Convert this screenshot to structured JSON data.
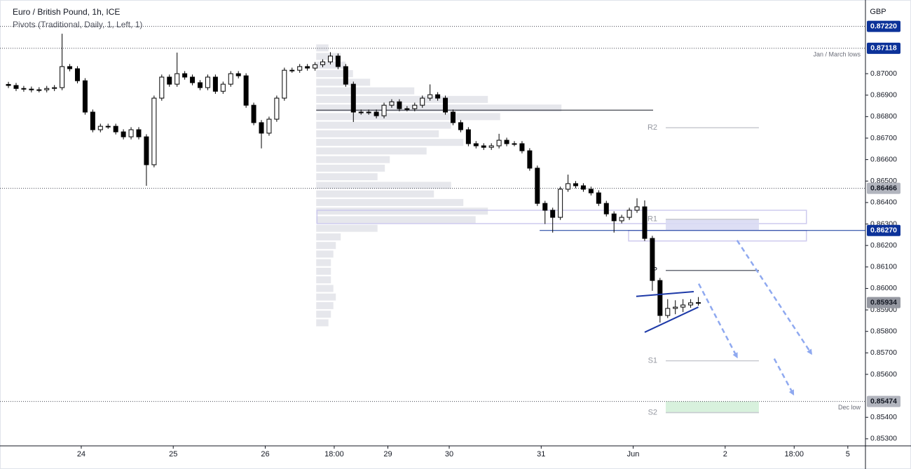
{
  "title": "Euro / British Pound, 1h, ICE",
  "indicator": "Pivots (Traditional, Daily, 1, Left, 1)",
  "chart_data": {
    "type": "candlestick",
    "currency": "GBP",
    "x": [
      0,
      2,
      4,
      6,
      8,
      10,
      12,
      14,
      16,
      18,
      20,
      22,
      24,
      26,
      28,
      30,
      32,
      34,
      36,
      38,
      40,
      42,
      44,
      46,
      48,
      50,
      52,
      54,
      56,
      58,
      60,
      62,
      64,
      66,
      68,
      70,
      72,
      74,
      76,
      78,
      80,
      82,
      84,
      86,
      88,
      90,
      92,
      94,
      96,
      98,
      100,
      102,
      104,
      106,
      108,
      110,
      112,
      114,
      116,
      118,
      120,
      122,
      124,
      126,
      128,
      130,
      132,
      134,
      136,
      138,
      140,
      142,
      144,
      146,
      148,
      150,
      152,
      154,
      156,
      158,
      160,
      162,
      164,
      166,
      168,
      170,
      172,
      174,
      176,
      178,
      180
    ],
    "open": [
      0.8695,
      0.86945,
      0.86931,
      0.86928,
      0.86925,
      0.86925,
      0.86931,
      0.86935,
      0.87033,
      0.87023,
      0.86967,
      0.86821,
      0.86739,
      0.86755,
      0.86755,
      0.86729,
      0.86706,
      0.86739,
      0.86706,
      0.86576,
      0.86886,
      0.86984,
      0.86951,
      0.87,
      0.86984,
      0.86958,
      0.86935,
      0.86984,
      0.86918,
      0.86951,
      0.87,
      0.8699,
      0.86853,
      0.86772,
      0.86723,
      0.86788,
      0.86886,
      0.87016,
      0.87016,
      0.87033,
      0.87026,
      0.87042,
      0.87055,
      0.87082,
      0.87033,
      0.86951,
      0.86821,
      0.86821,
      0.86821,
      0.86804,
      0.86853,
      0.86869,
      0.86837,
      0.86837,
      0.86853,
      0.86886,
      0.86902,
      0.86886,
      0.86821,
      0.86772,
      0.86739,
      0.86674,
      0.86664,
      0.86657,
      0.86664,
      0.8669,
      0.86674,
      0.86674,
      0.86641,
      0.8656,
      0.86396,
      0.86364,
      0.86331,
      0.86462,
      0.86488,
      0.86478,
      0.86462,
      0.86445,
      0.86396,
      0.86347,
      0.86315,
      0.86331,
      0.86364,
      0.8638,
      0.86233,
      0.86037,
      0.85874,
      0.85907,
      0.85913,
      0.85923,
      0.85933
    ],
    "high": [
      0.86962,
      0.86957,
      0.86943,
      0.8694,
      0.86937,
      0.86943,
      0.86947,
      0.87186,
      0.87045,
      0.87035,
      0.86979,
      0.86833,
      0.86767,
      0.86767,
      0.86767,
      0.86741,
      0.86751,
      0.86751,
      0.86718,
      0.86898,
      0.86996,
      0.86996,
      0.87098,
      0.87012,
      0.86996,
      0.8697,
      0.86996,
      0.86996,
      0.86963,
      0.87012,
      0.87012,
      0.87002,
      0.86865,
      0.86784,
      0.868,
      0.86898,
      0.87028,
      0.87028,
      0.87045,
      0.87045,
      0.87054,
      0.87067,
      0.871,
      0.87094,
      0.87045,
      0.86963,
      0.86833,
      0.86833,
      0.86833,
      0.86865,
      0.86881,
      0.86881,
      0.86849,
      0.86865,
      0.86898,
      0.8695,
      0.86914,
      0.86898,
      0.86833,
      0.86784,
      0.86751,
      0.86686,
      0.86676,
      0.86676,
      0.8672,
      0.86702,
      0.86686,
      0.86686,
      0.86653,
      0.86572,
      0.86408,
      0.86376,
      0.86474,
      0.8653,
      0.865,
      0.8649,
      0.86474,
      0.86457,
      0.86408,
      0.86359,
      0.86343,
      0.86376,
      0.8642,
      0.8641,
      0.86245,
      0.86049,
      0.8595,
      0.85945,
      0.8595,
      0.8595,
      0.8596
    ],
    "low": [
      0.86933,
      0.86919,
      0.86916,
      0.86913,
      0.86913,
      0.86913,
      0.86919,
      0.86923,
      0.87011,
      0.86955,
      0.86809,
      0.86727,
      0.86727,
      0.86743,
      0.86717,
      0.86694,
      0.86694,
      0.86694,
      0.86478,
      0.86564,
      0.86874,
      0.86939,
      0.86939,
      0.86972,
      0.86946,
      0.86923,
      0.86923,
      0.86906,
      0.86906,
      0.86939,
      0.86978,
      0.86841,
      0.8676,
      0.86652,
      0.86711,
      0.86776,
      0.86874,
      0.87004,
      0.87004,
      0.87014,
      0.87014,
      0.8703,
      0.87043,
      0.87021,
      0.86939,
      0.86775,
      0.86809,
      0.86809,
      0.86792,
      0.86792,
      0.86841,
      0.86825,
      0.86825,
      0.86825,
      0.86841,
      0.86874,
      0.86874,
      0.86809,
      0.8676,
      0.86727,
      0.86662,
      0.86652,
      0.86645,
      0.86645,
      0.86652,
      0.86662,
      0.86662,
      0.86629,
      0.86548,
      0.86384,
      0.863,
      0.8626,
      0.86319,
      0.8645,
      0.86466,
      0.8645,
      0.86433,
      0.86384,
      0.86335,
      0.8626,
      0.86303,
      0.86319,
      0.86352,
      0.86221,
      0.85989,
      0.85841,
      0.85862,
      0.8588,
      0.8589,
      0.8591,
      0.8592
    ],
    "close": [
      0.86945,
      0.86931,
      0.86928,
      0.86925,
      0.86925,
      0.86931,
      0.86935,
      0.87033,
      0.87023,
      0.86967,
      0.86821,
      0.86739,
      0.86755,
      0.86755,
      0.86729,
      0.86706,
      0.86739,
      0.86706,
      0.86576,
      0.86886,
      0.86984,
      0.86951,
      0.87,
      0.86984,
      0.86958,
      0.86935,
      0.86984,
      0.86918,
      0.86951,
      0.87,
      0.8699,
      0.86853,
      0.86772,
      0.86723,
      0.86788,
      0.86886,
      0.87016,
      0.87016,
      0.87033,
      0.87026,
      0.87042,
      0.87055,
      0.87082,
      0.87033,
      0.86951,
      0.86821,
      0.86821,
      0.86821,
      0.86804,
      0.86853,
      0.86869,
      0.86837,
      0.86837,
      0.86853,
      0.86886,
      0.86902,
      0.86886,
      0.86821,
      0.86772,
      0.86739,
      0.86674,
      0.86664,
      0.86657,
      0.86664,
      0.8669,
      0.86674,
      0.86674,
      0.86641,
      0.8656,
      0.86396,
      0.86364,
      0.86331,
      0.86462,
      0.86488,
      0.86478,
      0.86462,
      0.86445,
      0.86396,
      0.86347,
      0.86315,
      0.86331,
      0.86364,
      0.8638,
      0.86233,
      0.86037,
      0.85874,
      0.85907,
      0.85913,
      0.85923,
      0.85933,
      0.85934
    ],
    "up_color": "#ffffff",
    "down_color": "#000000",
    "xlim": [
      -2.2,
      223.6
    ],
    "ylim": [
      0.85267,
      0.87343
    ],
    "xticks": [
      {
        "value": 19,
        "label": "24"
      },
      {
        "value": 43,
        "label": "25"
      },
      {
        "value": 67,
        "label": "26"
      },
      {
        "value": 85,
        "label": "18:00"
      },
      {
        "value": 99,
        "label": "29"
      },
      {
        "value": 115,
        "label": "30"
      },
      {
        "value": 139,
        "label": "31"
      },
      {
        "value": 163,
        "label": "Jun"
      },
      {
        "value": 187,
        "label": "2"
      },
      {
        "value": 205,
        "label": "18:00"
      },
      {
        "value": 219,
        "label": "5"
      }
    ],
    "yticks": [
      {
        "value": 0.853,
        "label": "0.85300"
      },
      {
        "value": 0.854,
        "label": "0.85400"
      },
      {
        "value": 0.856,
        "label": "0.85600"
      },
      {
        "value": 0.857,
        "label": "0.85700"
      },
      {
        "value": 0.858,
        "label": "0.85800"
      },
      {
        "value": 0.859,
        "label": "0.85900"
      },
      {
        "value": 0.86,
        "label": "0.86000"
      },
      {
        "value": 0.861,
        "label": "0.86100"
      },
      {
        "value": 0.862,
        "label": "0.86200"
      },
      {
        "value": 0.863,
        "label": "0.86300"
      },
      {
        "value": 0.864,
        "label": "0.86400"
      },
      {
        "value": 0.865,
        "label": "0.86500"
      },
      {
        "value": 0.866,
        "label": "0.86600"
      },
      {
        "value": 0.867,
        "label": "0.86700"
      },
      {
        "value": 0.868,
        "label": "0.86800"
      },
      {
        "value": 0.869,
        "label": "0.86900"
      },
      {
        "value": 0.87,
        "label": "0.87000"
      }
    ],
    "grid": false,
    "levels": [
      {
        "value": 0.8722,
        "label": "0.87220",
        "line": "dotted",
        "tag": "#0c3299",
        "from": -2.2
      },
      {
        "value": 0.87118,
        "label": "0.87118",
        "line": "dotted",
        "tag": "#0c3299",
        "from": -2.2
      },
      {
        "value": 0.86466,
        "label": "0.86466",
        "line": "dotted",
        "tag": "#b2b5be",
        "from": -2.2
      },
      {
        "value": 0.8627,
        "label": "0.86270",
        "line": "solid",
        "tag": "#0c3299",
        "from": 138.6
      },
      {
        "value": 0.85934,
        "label": "0.85934",
        "line": "none",
        "tag": "#9598a1",
        "from": -2.2
      },
      {
        "value": 0.85474,
        "label": "0.85474",
        "line": "dotted",
        "tag": "#b2b5be",
        "from": -2.2
      }
    ],
    "notes": [
      {
        "text": "Jan / March lows",
        "value": 0.87118
      },
      {
        "text": "Dec low",
        "value": 0.85474
      }
    ],
    "pivots": {
      "x": [
        171.5,
        195.8
      ],
      "levels": [
        {
          "label": "R2",
          "value": 0.86748,
          "color": "#c8cad0"
        },
        {
          "label": "R1",
          "value": 0.86322,
          "color": "#c8cad0"
        },
        {
          "label": "P",
          "value": 0.86084,
          "color": "#6a6d78"
        },
        {
          "label": "S1",
          "value": 0.85663,
          "color": "#c8cad0"
        },
        {
          "label": "S2",
          "value": 0.85422,
          "color": "#c8cad0"
        }
      ]
    },
    "zones": [
      {
        "x": [
          80.5,
          208.2
        ],
        "y": [
          0.86302,
          0.86364
        ],
        "stroke": "#c9c4ec",
        "fill": "none"
      },
      {
        "x": [
          161.8,
          208.2
        ],
        "y": [
          0.86221,
          0.8627
        ],
        "stroke": "#c9c4ec",
        "fill": "none"
      },
      {
        "x": [
          171.5,
          195.8
        ],
        "y": [
          0.8627,
          0.86322
        ],
        "stroke": "none",
        "fill": "#d9daf3"
      },
      {
        "x": [
          171.5,
          195.8
        ],
        "y": [
          0.85419,
          0.85474
        ],
        "stroke": "none",
        "fill": "#d4efd9"
      }
    ],
    "volume_profile": {
      "x": 80.3,
      "color": "#d1d4dc",
      "prices": [
        0.8712,
        0.8708,
        0.8704,
        0.87,
        0.8696,
        0.8692,
        0.8688,
        0.8684,
        0.868,
        0.8676,
        0.8672,
        0.8668,
        0.8664,
        0.866,
        0.8656,
        0.8652,
        0.8648,
        0.8644,
        0.864,
        0.8636,
        0.8632,
        0.8628,
        0.8624,
        0.862,
        0.8616,
        0.8612,
        0.8608,
        0.8604,
        0.86,
        0.8596,
        0.8592,
        0.8588,
        0.8584
      ],
      "values": [
        5,
        10,
        12,
        15,
        22,
        40,
        70,
        100,
        75,
        55,
        50,
        60,
        45,
        30,
        28,
        25,
        55,
        48,
        60,
        70,
        65,
        25,
        10,
        8,
        7,
        6,
        6,
        6,
        7,
        8,
        7,
        6,
        5
      ]
    },
    "poc": {
      "value": 0.8683,
      "x": [
        80.3,
        168.2
      ]
    },
    "trendlines": [
      {
        "x": [
          163.8,
          178.8
        ],
        "y": [
          0.85963,
          0.85985
        ]
      },
      {
        "x": [
          166,
          180
        ],
        "y": [
          0.85796,
          0.85913
        ]
      }
    ],
    "arrows": [
      {
        "x": [
          180.1,
          190.1
        ],
        "y": [
          0.86022,
          0.8568
        ]
      },
      {
        "x": [
          190.1,
          209.5
        ],
        "y": [
          0.86224,
          0.85696
        ]
      },
      {
        "x": [
          199.8,
          204.8
        ],
        "y": [
          0.85673,
          0.85507
        ]
      }
    ]
  }
}
